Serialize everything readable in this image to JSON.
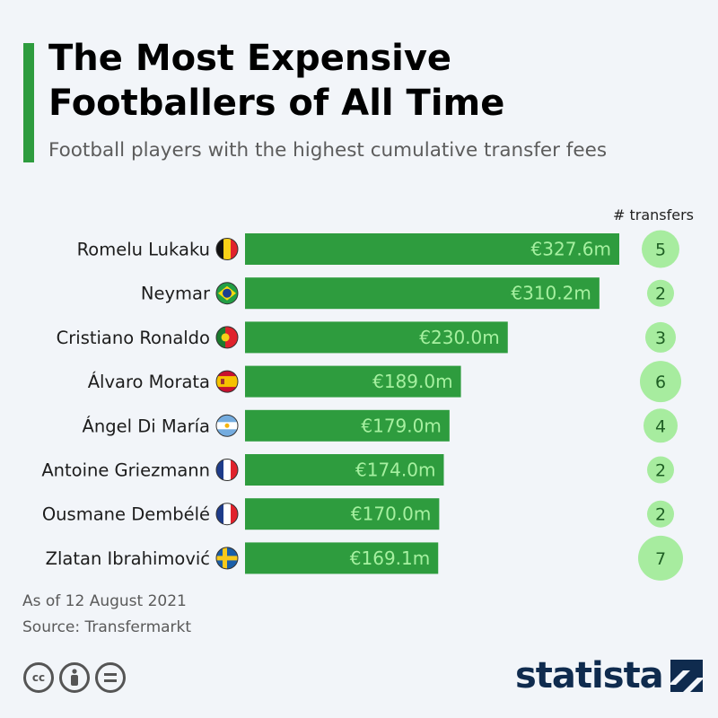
{
  "header": {
    "title_line1": "The Most Expensive",
    "title_line2": "Footballers of All Time",
    "subtitle": "Football players with the highest cumulative transfer fees"
  },
  "colors": {
    "accent": "#2e9c3e",
    "bar": "#2e9c3e",
    "value_text": "#a6f0a0",
    "bubble": "#a7ec9f",
    "bubble_text": "#1f5f24",
    "brand": "#0f2b4e"
  },
  "chart_data": {
    "type": "bar",
    "orientation": "horizontal",
    "categories": [
      "Romelu Lukaku",
      "Neymar",
      "Cristiano Ronaldo",
      "Álvaro Morata",
      "Ángel Di María",
      "Antoine Griezmann",
      "Ousmane Dembélé",
      "Zlatan Ibrahimović"
    ],
    "values": [
      327.6,
      310.2,
      230.0,
      189.0,
      179.0,
      174.0,
      170.0,
      169.1
    ],
    "value_labels": [
      "€327.6m",
      "€310.2m",
      "€230.0m",
      "€189.0m",
      "€179.0m",
      "€174.0m",
      "€170.0m",
      "€169.1m"
    ],
    "countries": [
      "Belgium",
      "Brazil",
      "Portugal",
      "Spain",
      "Argentina",
      "France",
      "France",
      "Sweden"
    ],
    "transfers_header": "# transfers",
    "transfers": [
      5,
      2,
      3,
      6,
      4,
      2,
      2,
      7
    ],
    "transfers_labels": [
      "5",
      "2",
      "3",
      "6",
      "4",
      "2",
      "2",
      "7"
    ],
    "unit": "€m",
    "xlim": [
      0,
      327.6
    ]
  },
  "footer": {
    "date_note": "As of 12 August 2021",
    "source": "Source: Transfermarkt",
    "brand": "statista",
    "license_icons": [
      "cc-icon",
      "by-icon",
      "nd-icon"
    ]
  }
}
